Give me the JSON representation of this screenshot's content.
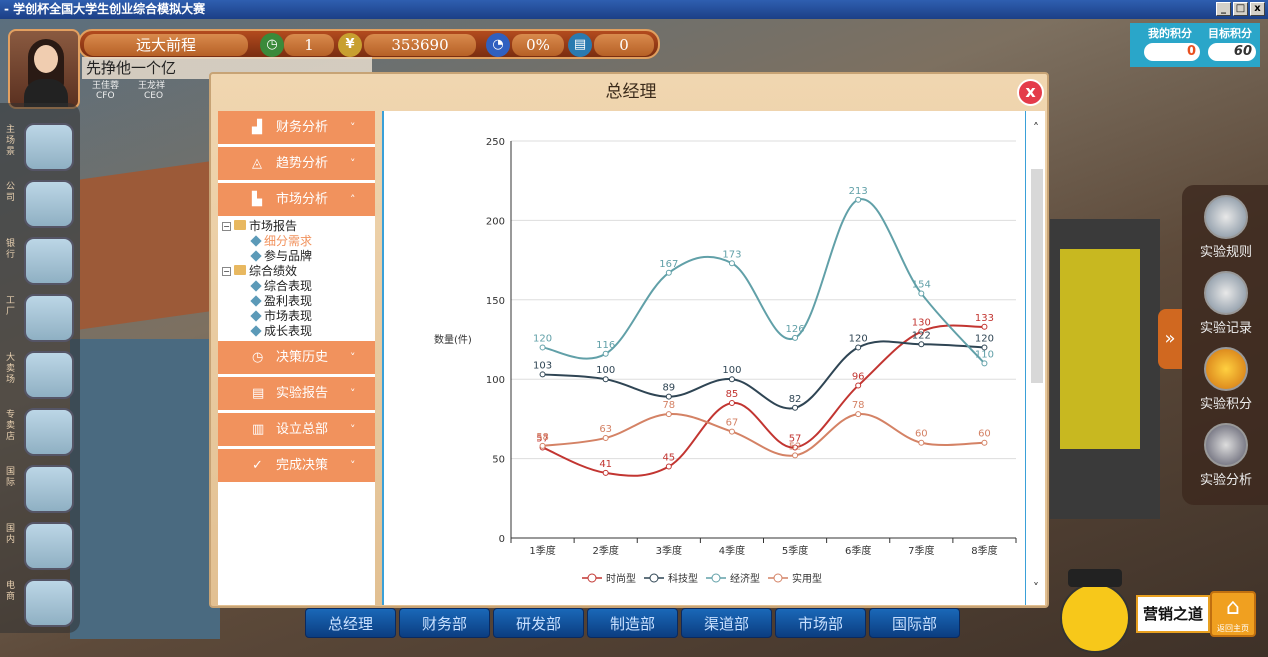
{
  "window": {
    "title": "- 学创杯全国大学生创业综合模拟大赛",
    "buttons": [
      "_",
      "□",
      "x"
    ]
  },
  "hud": {
    "company": "远大前程",
    "clock_value": "1",
    "money_value": "353690",
    "share_value": "0%",
    "books_value": "0",
    "slogan": "先挣他一个亿",
    "roles": [
      {
        "name": "王佳蓉",
        "role": "CFO"
      },
      {
        "name": "王龙祥",
        "role": "CEO"
      }
    ]
  },
  "score": {
    "my_label": "我的积分",
    "my_value": "0",
    "target_label": "目标积分",
    "target_value": "60"
  },
  "left_nav": [
    {
      "label": "主场景",
      "icon": "city-icon"
    },
    {
      "label": "公司",
      "icon": "office-icon"
    },
    {
      "label": "银行",
      "icon": "bank-icon"
    },
    {
      "label": "工厂",
      "icon": "factory-icon"
    },
    {
      "label": "大卖场",
      "icon": "market-icon"
    },
    {
      "label": "专卖店",
      "icon": "store-icon"
    },
    {
      "label": "国际",
      "icon": "global-icon"
    },
    {
      "label": "国内",
      "icon": "domestic-icon"
    },
    {
      "label": "电商",
      "icon": "ecommerce-icon"
    }
  ],
  "right_menu": [
    {
      "label": "实验规则",
      "icon": "rules-icon"
    },
    {
      "label": "实验记录",
      "icon": "clipboard-icon"
    },
    {
      "label": "实验积分",
      "icon": "medal-icon"
    },
    {
      "label": "实验分析",
      "icon": "analysis-icon"
    }
  ],
  "bottom_tabs": [
    "总经理",
    "财务部",
    "研发部",
    "制造部",
    "渠道部",
    "市场部",
    "国际部"
  ],
  "mascot": {
    "label": "营销之道",
    "home_label": "返回主页"
  },
  "modal": {
    "title": "总经理",
    "close": "x",
    "menu": [
      {
        "label": "财务分析",
        "icon": "finance-icon",
        "chevron": "˅"
      },
      {
        "label": "趋势分析",
        "icon": "trend-icon",
        "chevron": "˅"
      },
      {
        "label": "市场分析",
        "icon": "market-analysis-icon",
        "chevron": "˄"
      },
      {
        "label": "决策历史",
        "icon": "history-icon",
        "chevron": "˅"
      },
      {
        "label": "实验报告",
        "icon": "report-icon",
        "chevron": "˅"
      },
      {
        "label": "设立总部",
        "icon": "hq-icon",
        "chevron": "˅"
      },
      {
        "label": "完成决策",
        "icon": "check-icon",
        "chevron": "˅"
      }
    ],
    "tree": [
      {
        "label": "市场报告",
        "level": 0
      },
      {
        "label": "细分需求",
        "level": 1,
        "selected": true
      },
      {
        "label": "参与品牌",
        "level": 1
      },
      {
        "label": "综合绩效",
        "level": 0
      },
      {
        "label": "综合表现",
        "level": 1
      },
      {
        "label": "盈利表现",
        "level": 1
      },
      {
        "label": "市场表现",
        "level": 1
      },
      {
        "label": "成长表现",
        "level": 1
      }
    ]
  },
  "chart_data": {
    "type": "line",
    "ylabel": "数量(件)",
    "ylim": [
      0,
      250
    ],
    "yticks": [
      0,
      50,
      100,
      150,
      200,
      250
    ],
    "categories": [
      "1季度",
      "2季度",
      "3季度",
      "4季度",
      "5季度",
      "6季度",
      "7季度",
      "8季度"
    ],
    "grid": true,
    "legend_position": "bottom",
    "series": [
      {
        "name": "时尚型",
        "color": "#c23531",
        "values": [
          57,
          41,
          45,
          85,
          57,
          96,
          130,
          133
        ]
      },
      {
        "name": "科技型",
        "color": "#2f4554",
        "values": [
          103,
          100,
          89,
          100,
          82,
          120,
          122,
          120
        ]
      },
      {
        "name": "经济型",
        "color": "#61a0a8",
        "values": [
          120,
          116,
          167,
          173,
          126,
          213,
          154,
          110
        ]
      },
      {
        "name": "实用型",
        "color": "#d48265",
        "values": [
          58,
          63,
          78,
          67,
          52,
          78,
          60,
          60
        ]
      }
    ]
  }
}
